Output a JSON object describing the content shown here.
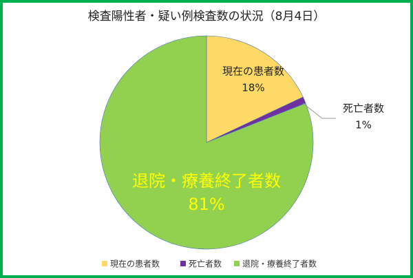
{
  "chart_data": {
    "type": "pie",
    "title": "検査陽性者・疑い例検査数の状況（8月4日）",
    "categories": [
      "現在の患者数",
      "死亡者数",
      "退院・療養終了者数"
    ],
    "values": [
      18,
      1,
      81
    ],
    "value_labels": [
      "18%",
      "1%",
      "81%"
    ],
    "colors": [
      "#ffd966",
      "#7030a0",
      "#92d050"
    ],
    "legend": "bottom"
  }
}
